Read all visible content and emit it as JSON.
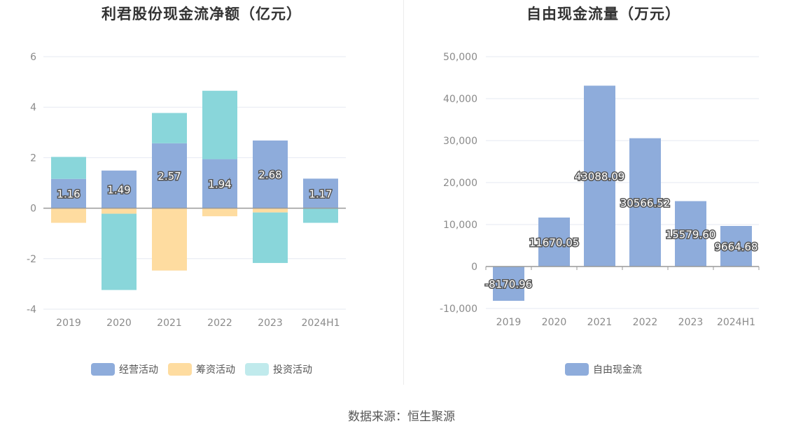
{
  "source_text": "数据来源：恒生聚源",
  "colors": {
    "operating": "#8eacdb",
    "financing": "#fedca0",
    "investing": "#89d6da",
    "fcf": "#8eacdb",
    "grid": "#e6e9f2",
    "axis": "#999999"
  },
  "chart_data": [
    {
      "type": "bar",
      "stacked": true,
      "title": "利君股份现金流净额（亿元）",
      "categories": [
        "2019",
        "2020",
        "2021",
        "2022",
        "2023",
        "2024H1"
      ],
      "ylim": [
        -4,
        6
      ],
      "yticks": [
        "6",
        "4",
        "2",
        "0",
        "-2",
        "-4"
      ],
      "ytick_values": [
        6,
        4,
        2,
        0,
        -2,
        -4
      ],
      "series": [
        {
          "name": "经营活动",
          "color": "#8eacdb",
          "values": [
            1.16,
            1.49,
            2.57,
            1.94,
            2.68,
            1.17
          ],
          "labels": [
            "1.16",
            "1.49",
            "2.57",
            "1.94",
            "2.68",
            "1.17"
          ]
        },
        {
          "name": "筹资活动",
          "color": "#fedca0",
          "values": [
            -0.58,
            -0.22,
            -2.47,
            -0.32,
            -0.17,
            0
          ]
        },
        {
          "name": "投资活动",
          "color": "#89d6da",
          "values": [
            0.87,
            -3.02,
            1.2,
            2.71,
            -2.0,
            -0.58
          ]
        }
      ],
      "legend": [
        "经营活动",
        "筹资活动",
        "投资活动"
      ]
    },
    {
      "type": "bar",
      "title": "自由现金流量（万元）",
      "categories": [
        "2019",
        "2020",
        "2021",
        "2022",
        "2023",
        "2024H1"
      ],
      "ylim": [
        -10000,
        50000
      ],
      "yticks": [
        "50,000",
        "40,000",
        "30,000",
        "20,000",
        "10,000",
        "0",
        "-10,000"
      ],
      "ytick_values": [
        50000,
        40000,
        30000,
        20000,
        10000,
        0,
        -10000
      ],
      "series": [
        {
          "name": "自由现金流",
          "color": "#8eacdb",
          "values": [
            -8170.96,
            11670.05,
            43088.09,
            30566.52,
            15579.6,
            9664.68
          ],
          "labels": [
            "-8170.96",
            "11670.05",
            "43088.09",
            "30566.52",
            "15579.60",
            "9664.68"
          ]
        }
      ],
      "legend": [
        "自由现金流"
      ]
    }
  ]
}
